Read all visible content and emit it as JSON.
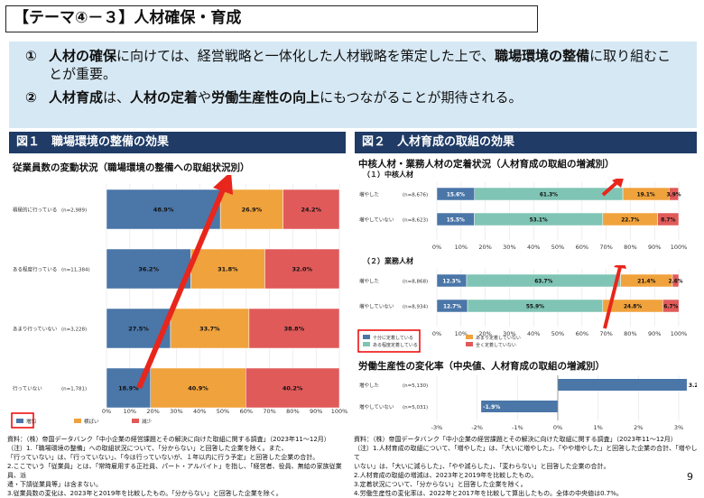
{
  "title": "【テーマ④－３】人材確保・育成",
  "summary": [
    {
      "num": "①",
      "parts": [
        [
          "人材の確保",
          true
        ],
        [
          "に向けては、経営戦略と一体化した人材戦略を策定した上で、",
          false
        ],
        [
          "職場環境の整備",
          true
        ],
        [
          "に取り組むことが重要。",
          false
        ]
      ]
    },
    {
      "num": "②",
      "parts": [
        [
          "人材育成",
          true
        ],
        [
          "は、",
          false
        ],
        [
          "人材の定着",
          true
        ],
        [
          "や",
          false
        ],
        [
          "労働生産性の向上",
          true
        ],
        [
          "にもつながることが期待される。",
          false
        ]
      ]
    }
  ],
  "fig1": {
    "header": "図１　職場環境の整備の効果",
    "subtitle": "従業員数の変動状況（職場環境の整備への取組状況別）"
  },
  "fig2": {
    "header": "図２　人材育成の取組の効果",
    "subtitle": "中核人材・業務人材の定着状況（人材育成の取組の増減別）",
    "part1": "（１）中核人材",
    "part2": "（２）業務人材",
    "subtitle2": "労働生産性の変化率（中央値、人材育成の取組の増減別）"
  },
  "chart_data": [
    {
      "type": "bar",
      "orientation": "horizontal-stacked",
      "categories": [
        "積極的に行っている",
        "ある程度行っている",
        "あまり行っていない",
        "行っていない"
      ],
      "n": [
        "(n=2,989)",
        "(n=11,384)",
        "(n=3,228)",
        "(n=1,781)"
      ],
      "series": [
        {
          "name": "増加",
          "values": [
            48.9,
            36.2,
            27.5,
            18.9
          ]
        },
        {
          "name": "横ばい",
          "values": [
            26.9,
            31.8,
            33.7,
            40.9
          ]
        },
        {
          "name": "減少",
          "values": [
            24.2,
            32.0,
            38.8,
            40.2
          ]
        }
      ],
      "xticks": [
        "0%",
        "10%",
        "20%",
        "30%",
        "40%",
        "50%",
        "60%",
        "70%",
        "80%",
        "90%",
        "100%"
      ],
      "colors": [
        "#4a76a8",
        "#f0a23c",
        "#e05a5a"
      ]
    },
    {
      "type": "bar",
      "orientation": "horizontal-stacked",
      "categories": [
        "増やした",
        "増やしていない"
      ],
      "n": [
        "(n=8,676)",
        "(n=8,623)"
      ],
      "series": [
        {
          "name": "十分に定着している",
          "values": [
            15.6,
            15.5
          ]
        },
        {
          "name": "ある程度定着している",
          "values": [
            61.3,
            53.1
          ]
        },
        {
          "name": "あまり定着していない",
          "values": [
            19.1,
            22.7
          ]
        },
        {
          "name": "全く定着していない",
          "values": [
            3.9,
            8.7
          ]
        }
      ],
      "xticks": [
        "0%",
        "10%",
        "20%",
        "30%",
        "40%",
        "50%",
        "60%",
        "70%",
        "80%",
        "90%",
        "100%"
      ]
    },
    {
      "type": "bar",
      "orientation": "horizontal-stacked",
      "categories": [
        "増やした",
        "増やしていない"
      ],
      "n": [
        "(n=8,868)",
        "(n=8,934)"
      ],
      "series": [
        {
          "name": "十分に定着している",
          "values": [
            12.3,
            12.7
          ]
        },
        {
          "name": "ある程度定着している",
          "values": [
            63.7,
            55.9
          ]
        },
        {
          "name": "あまり定着していない",
          "values": [
            21.4,
            24.8
          ]
        },
        {
          "name": "全く定着していない",
          "values": [
            2.6,
            6.7
          ]
        }
      ],
      "xticks": [
        "0%",
        "10%",
        "20%",
        "30%",
        "40%",
        "50%",
        "60%",
        "70%",
        "80%",
        "90%",
        "100%"
      ],
      "colors": [
        "#4a76a8",
        "#7fc4b4",
        "#f0a23c",
        "#e05a5a"
      ]
    },
    {
      "type": "bar",
      "orientation": "horizontal",
      "categories": [
        "増やした",
        "増やしていない"
      ],
      "n": [
        "(n=5,130)",
        "(n=5,031)"
      ],
      "values": [
        3.2,
        -1.9
      ],
      "xlim": [
        -3,
        3
      ],
      "xticks": [
        "-3%",
        "-2%",
        "-1%",
        "0%",
        "1%",
        "2%",
        "3%"
      ],
      "labels": [
        "3.2%",
        "-1.9%"
      ]
    }
  ],
  "footnotes_left": [
    "資料：（株）帝国データバンク「中小企業の経営課題とその解決に向けた取組に関する調査」（2023年11～12月）",
    "（注）1.「職場環境の整備」への取組状況について、「分からない」と回答した企業を除く。また、",
    "「行っていない」は、「行っていない」、「今は行っていないが、１年以内に行う予定」と回答した企業の合計。",
    "2.ここでいう「従業員」とは、「常時雇用する正社員、パート・アルバイト」を指し、「経営者、役員、無給の家族従業員、派",
    "遣・下請従業員等」は含まない。",
    "3.従業員数の変化は、2023年と2019年を比較したもの。「分からない」と回答した企業を除く。"
  ],
  "footnotes_right": [
    "資料：（株）帝国データバンク「中小企業の経営課題とその解決に向けた取組に関する調査」（2023年11～12月）",
    "（注）1.人材育成の取組について、「増やした」は、「大いに増やした」、「やや増やした」と回答した企業の合計、「増やして",
    "いない」は、「大いに減らした」、「やや減らした」、「変わらない」と回答した企業の合計。",
    "2.人材育成の取組の増減は、2023年と2019年を比較したもの。",
    "3.定着状況について、「分からない」と回答した企業を除く。",
    "4.労働生産性の変化率は、2022年と2017年を比較して算出したもの。全体の中央値は0.7%。"
  ],
  "page_number": "9"
}
